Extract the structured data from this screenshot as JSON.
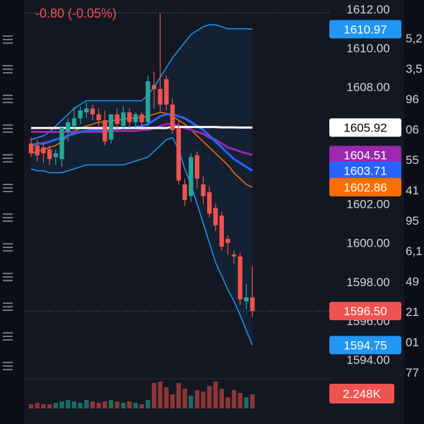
{
  "change_text": "-0.80 (-0.05%)",
  "colors": {
    "background": "#131722",
    "left_panel": "#0b0e15",
    "up": "#26a69a",
    "down": "#ef5350",
    "text": "#d1d4dc",
    "grid_dot": "#8a8f9a",
    "bb_band": "#2196f3",
    "ma_white": "#ffffff",
    "ma_purple": "#9c27b0",
    "ma_blue": "#2962ff",
    "ma_orange": "#ff6d00",
    "price_label_up": "#26a69a",
    "price_label_down": "#ef5350"
  },
  "price_axis": {
    "ticks": [
      "1612.00",
      "1610.00",
      "1608.00",
      "1602.00",
      "1600.00",
      "1598.00",
      "1596.00",
      "1594.00"
    ]
  },
  "price_tags": [
    {
      "name": "price-tag-bb-upper",
      "text": "1610.97",
      "bg": "#2196f3",
      "fg": "#ffffff",
      "value": 1610.97
    },
    {
      "name": "price-tag-ma-white",
      "text": "1605.92",
      "bg": "#ffffff",
      "fg": "#000000",
      "value": 1605.92
    },
    {
      "name": "price-tag-ma-purple",
      "text": "1604.51",
      "bg": "#9c27b0",
      "fg": "#ffffff",
      "value": 1604.51
    },
    {
      "name": "price-tag-ma-blue",
      "text": "1603.71",
      "bg": "#2962ff",
      "fg": "#ffffff",
      "value": 1603.71
    },
    {
      "name": "price-tag-ma-orange",
      "text": "1602.86",
      "bg": "#ff6d00",
      "fg": "#ffffff",
      "value": 1602.86
    },
    {
      "name": "price-tag-last",
      "text": "1596.50",
      "bg": "#ef5350",
      "fg": "#ffffff",
      "value": 1596.5
    },
    {
      "name": "price-tag-bb-lower",
      "text": "1594.75",
      "bg": "#2196f3",
      "fg": "#ffffff",
      "value": 1594.75
    }
  ],
  "volume_tag": "2.248K",
  "right_edge_fragments": [
    "5,2",
    "3,5",
    "96",
    "06",
    "55",
    "41",
    "95",
    "6,1",
    "49",
    "21",
    "01",
    "77"
  ],
  "chart_data": {
    "type": "candlestick",
    "candles": [
      {
        "o": 1605.1,
        "h": 1605.4,
        "c": 1604.6,
        "l": 1604.4
      },
      {
        "o": 1605.0,
        "h": 1605.3,
        "c": 1604.5,
        "l": 1604.2
      },
      {
        "o": 1604.9,
        "h": 1605.2,
        "c": 1604.6,
        "l": 1604.1
      },
      {
        "o": 1604.8,
        "h": 1605.0,
        "c": 1604.3,
        "l": 1604.0
      },
      {
        "o": 1604.4,
        "h": 1604.8,
        "c": 1604.6,
        "l": 1604.0
      },
      {
        "o": 1604.3,
        "h": 1606.0,
        "c": 1605.9,
        "l": 1603.9
      },
      {
        "o": 1605.7,
        "h": 1606.4,
        "c": 1606.2,
        "l": 1605.2
      },
      {
        "o": 1606.0,
        "h": 1607.0,
        "c": 1606.4,
        "l": 1605.7
      },
      {
        "o": 1606.4,
        "h": 1607.0,
        "c": 1606.8,
        "l": 1606.1
      },
      {
        "o": 1606.7,
        "h": 1607.2,
        "c": 1606.9,
        "l": 1606.4
      },
      {
        "o": 1606.9,
        "h": 1607.1,
        "c": 1606.6,
        "l": 1606.3
      },
      {
        "o": 1606.6,
        "h": 1606.9,
        "c": 1606.3,
        "l": 1606.0
      },
      {
        "o": 1606.3,
        "h": 1606.8,
        "c": 1605.2,
        "l": 1605.0
      },
      {
        "o": 1605.3,
        "h": 1606.5,
        "c": 1606.6,
        "l": 1605.1
      },
      {
        "o": 1606.6,
        "h": 1606.9,
        "c": 1606.1,
        "l": 1605.8
      },
      {
        "o": 1606.0,
        "h": 1607.0,
        "c": 1606.7,
        "l": 1605.8
      },
      {
        "o": 1606.7,
        "h": 1606.9,
        "c": 1606.2,
        "l": 1605.9
      },
      {
        "o": 1606.2,
        "h": 1606.7,
        "c": 1606.6,
        "l": 1605.9
      },
      {
        "o": 1606.6,
        "h": 1606.7,
        "c": 1606.2,
        "l": 1606.0
      },
      {
        "o": 1606.2,
        "h": 1608.6,
        "c": 1608.3,
        "l": 1606.0
      },
      {
        "o": 1608.1,
        "h": 1608.8,
        "c": 1607.9,
        "l": 1606.9
      },
      {
        "o": 1607.9,
        "h": 1611.8,
        "c": 1607.1,
        "l": 1606.7
      },
      {
        "o": 1608.4,
        "h": 1608.6,
        "c": 1607.1,
        "l": 1606.8
      },
      {
        "o": 1607.1,
        "h": 1607.4,
        "c": 1605.8,
        "l": 1605.6
      },
      {
        "o": 1605.9,
        "h": 1606.3,
        "c": 1603.2,
        "l": 1603.0
      },
      {
        "o": 1603.0,
        "h": 1603.3,
        "c": 1602.2,
        "l": 1601.9
      },
      {
        "o": 1602.4,
        "h": 1604.6,
        "c": 1604.4,
        "l": 1602.1
      },
      {
        "o": 1604.5,
        "h": 1604.7,
        "c": 1603.3,
        "l": 1602.8
      },
      {
        "o": 1603.0,
        "h": 1603.4,
        "c": 1602.4,
        "l": 1602.0
      },
      {
        "o": 1602.6,
        "h": 1602.9,
        "c": 1601.5,
        "l": 1601.3
      },
      {
        "o": 1601.8,
        "h": 1602.0,
        "c": 1600.9,
        "l": 1600.6
      },
      {
        "o": 1601.4,
        "h": 1601.6,
        "c": 1599.8,
        "l": 1599.6
      },
      {
        "o": 1600.2,
        "h": 1600.4,
        "c": 1600.0,
        "l": 1599.4
      },
      {
        "o": 1599.4,
        "h": 1599.6,
        "c": 1599.3,
        "l": 1598.9
      },
      {
        "o": 1599.3,
        "h": 1599.5,
        "c": 1597.1,
        "l": 1596.8
      },
      {
        "o": 1597.0,
        "h": 1597.9,
        "c": 1597.2,
        "l": 1596.6
      },
      {
        "o": 1597.2,
        "h": 1598.8,
        "c": 1596.5,
        "l": 1596.2
      }
    ],
    "volumes": [
      3,
      4,
      3,
      3,
      4,
      5,
      6,
      5,
      4,
      6,
      5,
      4,
      5,
      6,
      5,
      4,
      5,
      4,
      3,
      6,
      18,
      19,
      15,
      10,
      18,
      14,
      9,
      13,
      12,
      16,
      19,
      14,
      8,
      13,
      11,
      8,
      10
    ],
    "bb_upper": [
      1605.3,
      1605.4,
      1605.5,
      1605.7,
      1606.0,
      1606.3,
      1606.6,
      1606.9,
      1607.1,
      1607.3,
      1607.3,
      1607.3,
      1607.3,
      1607.3,
      1607.3,
      1607.3,
      1607.3,
      1607.3,
      1607.3,
      1607.6,
      1608.0,
      1608.5,
      1609.0,
      1609.5,
      1609.9,
      1610.3,
      1610.7,
      1610.9,
      1611.1,
      1611.2,
      1611.2,
      1611.1,
      1611.0,
      1611.0,
      1611.0,
      1611.0,
      1610.97
    ],
    "bb_lower": [
      1603.8,
      1603.7,
      1603.7,
      1603.6,
      1603.6,
      1603.6,
      1603.7,
      1603.8,
      1603.9,
      1604.0,
      1604.0,
      1604.0,
      1604.0,
      1604.0,
      1604.0,
      1604.0,
      1604.1,
      1604.2,
      1604.3,
      1604.4,
      1604.7,
      1605.0,
      1605.3,
      1605.4,
      1604.8,
      1603.8,
      1603.0,
      1602.0,
      1601.0,
      1600.0,
      1599.0,
      1598.3,
      1597.6,
      1597.0,
      1596.3,
      1595.5,
      1594.75
    ],
    "ma_white": [
      1605.9,
      1605.9,
      1605.9,
      1605.9,
      1605.9,
      1605.9,
      1605.9,
      1605.9,
      1605.9,
      1605.9,
      1605.9,
      1605.9,
      1605.9,
      1605.9,
      1605.9,
      1605.9,
      1605.9,
      1605.9,
      1605.9,
      1605.9,
      1605.9,
      1605.9,
      1605.9,
      1605.95,
      1605.95,
      1605.95,
      1605.95,
      1605.95,
      1605.95,
      1605.95,
      1605.95,
      1605.93,
      1605.93,
      1605.93,
      1605.92,
      1605.92,
      1605.92
    ],
    "ma_purple": [
      1605.7,
      1605.7,
      1605.7,
      1605.7,
      1605.7,
      1605.7,
      1605.7,
      1605.7,
      1605.7,
      1605.7,
      1605.7,
      1605.7,
      1605.7,
      1605.75,
      1605.75,
      1605.75,
      1605.75,
      1605.75,
      1605.8,
      1605.8,
      1605.9,
      1606.0,
      1606.1,
      1606.1,
      1606.0,
      1605.9,
      1605.8,
      1605.7,
      1605.6,
      1605.4,
      1605.3,
      1605.1,
      1604.9,
      1604.8,
      1604.7,
      1604.6,
      1604.51
    ],
    "ma_blue": [
      1605.0,
      1605.1,
      1605.1,
      1605.2,
      1605.3,
      1605.4,
      1605.5,
      1605.6,
      1605.7,
      1605.75,
      1605.8,
      1605.8,
      1605.8,
      1605.85,
      1605.85,
      1605.9,
      1605.9,
      1605.95,
      1606.0,
      1606.1,
      1606.3,
      1606.5,
      1606.6,
      1606.6,
      1606.5,
      1606.4,
      1606.2,
      1606.0,
      1605.8,
      1605.5,
      1605.2,
      1604.9,
      1604.6,
      1604.3,
      1604.1,
      1603.9,
      1603.71
    ],
    "ma_orange": [
      1604.6,
      1604.7,
      1604.8,
      1604.9,
      1605.0,
      1605.2,
      1605.5,
      1605.7,
      1605.9,
      1606.0,
      1606.1,
      1606.2,
      1606.2,
      1606.3,
      1606.3,
      1606.35,
      1606.4,
      1606.4,
      1606.45,
      1606.5,
      1606.6,
      1606.7,
      1606.65,
      1606.5,
      1606.3,
      1606.1,
      1605.8,
      1605.5,
      1605.2,
      1604.9,
      1604.6,
      1604.3,
      1604.0,
      1603.6,
      1603.3,
      1603.0,
      1602.86
    ],
    "ylim": [
      1593.5,
      1612.3
    ],
    "last_price": 1596.5,
    "high_price": 1612.0
  }
}
